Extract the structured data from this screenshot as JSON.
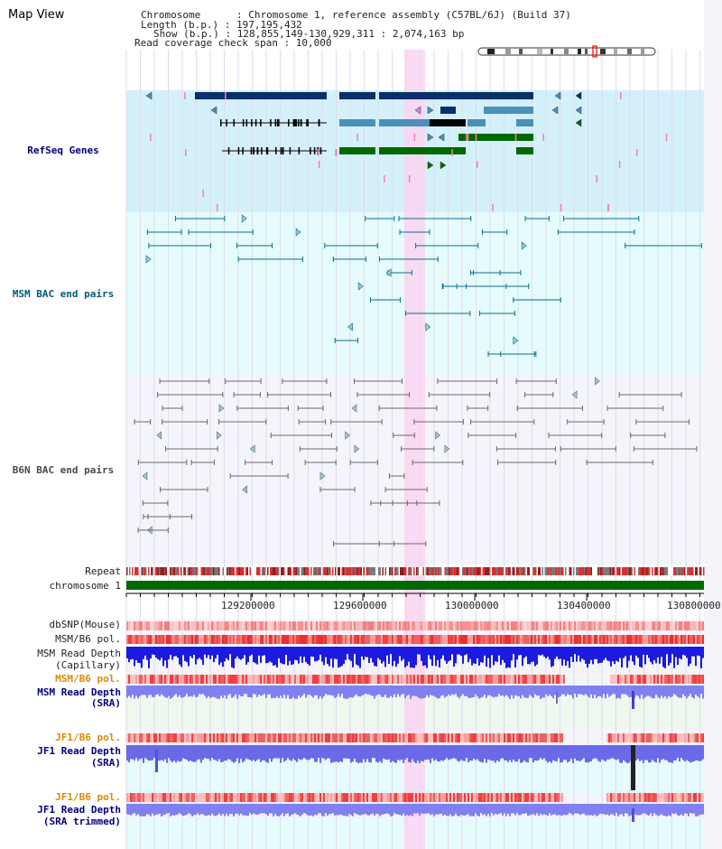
{
  "title": "Map View",
  "header": {
    "chromosome_line": "Chromosome      : Chromosome 1, reference assembly (C57BL/6J) (Build 37)",
    "length_line": "Length (b.p.) : 197,195,432",
    "show_line": "Show (b.p.) : 128,855,149-130,929,311 : 2,074,163 bp",
    "coverage_line": "Read coverage check span : 10,000"
  },
  "tracks": {
    "refseq": "RefSeq Genes",
    "msm_bac": "MSM BAC end pairs",
    "b6n_bac": "B6N BAC end pairs",
    "repeat": "Repeat",
    "chromosome": "chromosome 1",
    "dbsnp": "dbSNP(Mouse)",
    "msm_b6_pol_1": "MSM/B6 pol.",
    "msm_read_depth_cap_1": "MSM Read Depth",
    "msm_read_depth_cap_2": "(Capillary)",
    "msm_b6_pol_2": "MSM/B6 pol.",
    "msm_read_depth_sra_1": "MSM Read Depth",
    "msm_read_depth_sra_2": "(SRA)",
    "jf1_b6_pol_1": "JF1/B6 pol.",
    "jf1_read_depth_1": "JF1 Read Depth",
    "jf1_read_depth_2": "(SRA)",
    "jf1_b6_pol_2": "JF1/B6 pol.",
    "jf1_read_depth_trim_1": "JF1 Read Depth",
    "jf1_read_depth_trim_2": "(SRA trimmed)"
  },
  "axis": {
    "ticks": [
      "129200000",
      "129600000",
      "130000000",
      "130400000",
      "130800000"
    ]
  },
  "colors": {
    "refseq_bg": "#d4f0fb",
    "msm_bg": "#e6fbfb",
    "b6n_bg": "#f4f4fb",
    "highlight": "#f9d5f0",
    "gene_navy": "#08306b",
    "gene_steel": "#4a90b8",
    "gene_green": "#006a00",
    "msm_line": "#0a6e8e",
    "b6n_line": "#6a6a6a",
    "chrom_green": "#006a00"
  }
}
